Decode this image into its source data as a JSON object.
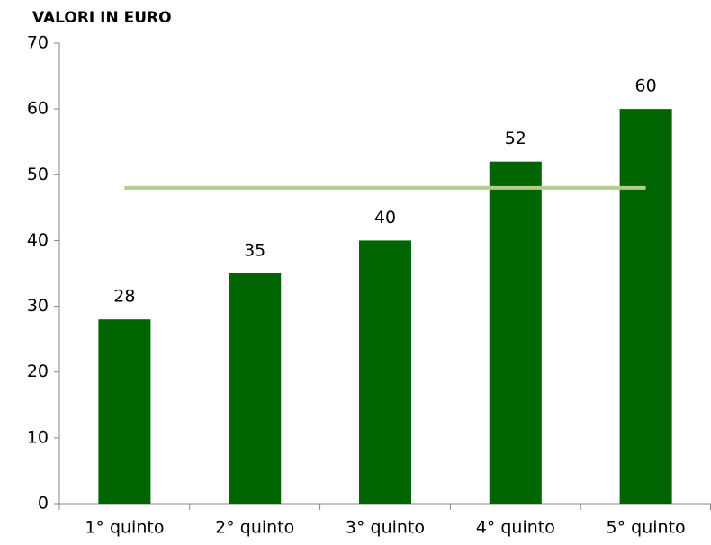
{
  "chart_data": {
    "type": "bar",
    "title": "VALORI IN EURO",
    "categories": [
      "1° quinto",
      "2° quinto",
      "3° quinto",
      "4° quinto",
      "5° quinto"
    ],
    "series": [
      {
        "type": "bar",
        "color": "#006400",
        "values": [
          28,
          35,
          40,
          52,
          60
        ]
      },
      {
        "type": "line",
        "color": "#b5cb8f",
        "values": [
          48,
          48,
          48,
          48,
          48
        ]
      }
    ],
    "ylim": [
      0,
      70
    ],
    "yticks": [
      0,
      10,
      20,
      30,
      40,
      50,
      60,
      70
    ],
    "grid": false
  }
}
